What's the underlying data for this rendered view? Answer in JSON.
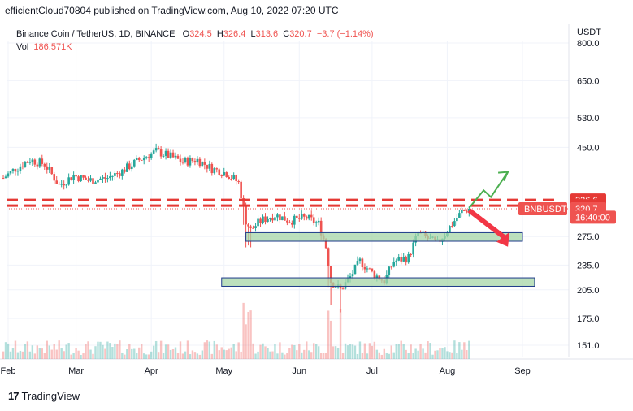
{
  "header": {
    "published": "efficientCloud70804 published on TradingView.com, Aug 10, 2022 07:20 UTC"
  },
  "legend": {
    "symbol": "Binance Coin / TetherUS, 1D, BINANCE",
    "o_label": "O",
    "o_value": "324.5",
    "h_label": "H",
    "h_value": "326.4",
    "l_label": "L",
    "l_value": "313.6",
    "c_label": "C",
    "c_value": "320.7",
    "change": "−3.7 (−1.14%)",
    "vol_label": "Vol",
    "vol_value": "186.571K"
  },
  "currency": "USDT",
  "footer": {
    "brand": "TradingView"
  },
  "colors": {
    "up": "#26a69a",
    "down": "#ef5350",
    "zone_fill": "#a5d6a7",
    "zone_border": "#1e3a8a",
    "resistance": "#e53935",
    "arrow_up": "#4caf50",
    "arrow_down": "#f23645"
  },
  "chart_data": {
    "type": "candlestick",
    "scale": "log",
    "ylim": [
      140,
      810
    ],
    "y_ticks": [
      "800.0",
      "650.0",
      "530.0",
      "450.0",
      "275.0",
      "235.0",
      "205.0",
      "175.0",
      "151.0"
    ],
    "x_ticks": [
      "Feb",
      "Mar",
      "Apr",
      "May",
      "Jun",
      "Jul",
      "Aug",
      "Sep"
    ],
    "price_labels": [
      {
        "text": "336.6",
        "value": 336.6,
        "kind": "resistance"
      },
      {
        "text": "326.2",
        "value": 326.2,
        "kind": "resistance"
      },
      {
        "text": "320.7",
        "value": 320.7,
        "kind": "last"
      },
      {
        "text": "16:40:00",
        "value": 306,
        "kind": "countdown"
      }
    ],
    "symbol_tag": "BNBUSDT",
    "resistance_levels": [
      336.6,
      326.2
    ],
    "last_price": 320.7,
    "zones": [
      {
        "from": "2022-05-10",
        "to": "2022-09-01",
        "low": 268,
        "high": 281
      },
      {
        "from": "2022-04-30",
        "to": "2022-09-06",
        "low": 209,
        "high": 219
      }
    ],
    "projection_up": [
      [
        "2022-08-10",
        322
      ],
      [
        "2022-08-16",
        355
      ],
      [
        "2022-08-19",
        342
      ],
      [
        "2022-08-26",
        393
      ]
    ],
    "projection_down": [
      [
        "2022-08-10",
        318
      ],
      [
        "2022-08-26",
        260
      ]
    ],
    "waypoints": [
      [
        "2022-01-30",
        380
      ],
      [
        "2022-02-04",
        400
      ],
      [
        "2022-02-10",
        420
      ],
      [
        "2022-02-16",
        410
      ],
      [
        "2022-02-22",
        365
      ],
      [
        "2022-02-28",
        385
      ],
      [
        "2022-03-06",
        375
      ],
      [
        "2022-03-14",
        380
      ],
      [
        "2022-03-20",
        395
      ],
      [
        "2022-03-27",
        420
      ],
      [
        "2022-04-03",
        440
      ],
      [
        "2022-04-08",
        430
      ],
      [
        "2022-04-14",
        415
      ],
      [
        "2022-04-20",
        420
      ],
      [
        "2022-04-26",
        400
      ],
      [
        "2022-05-02",
        390
      ],
      [
        "2022-05-07",
        370
      ],
      [
        "2022-05-10",
        300
      ],
      [
        "2022-05-12",
        285
      ],
      [
        "2022-05-16",
        300
      ],
      [
        "2022-05-22",
        310
      ],
      [
        "2022-05-28",
        300
      ],
      [
        "2022-06-04",
        305
      ],
      [
        "2022-06-09",
        295
      ],
      [
        "2022-06-12",
        260
      ],
      [
        "2022-06-14",
        215
      ],
      [
        "2022-06-18",
        205
      ],
      [
        "2022-06-22",
        220
      ],
      [
        "2022-06-26",
        240
      ],
      [
        "2022-07-01",
        225
      ],
      [
        "2022-07-06",
        215
      ],
      [
        "2022-07-10",
        240
      ],
      [
        "2022-07-16",
        245
      ],
      [
        "2022-07-20",
        280
      ],
      [
        "2022-07-25",
        270
      ],
      [
        "2022-07-28",
        265
      ],
      [
        "2022-07-31",
        280
      ],
      [
        "2022-08-04",
        300
      ],
      [
        "2022-08-07",
        315
      ],
      [
        "2022-08-10",
        320.7
      ]
    ],
    "volume": {
      "label": "Vol",
      "last": "186.571K",
      "spike_dates": [
        "2022-05-09",
        "2022-05-10",
        "2022-05-11",
        "2022-05-12",
        "2022-06-13",
        "2022-06-14",
        "2022-06-18"
      ]
    }
  }
}
